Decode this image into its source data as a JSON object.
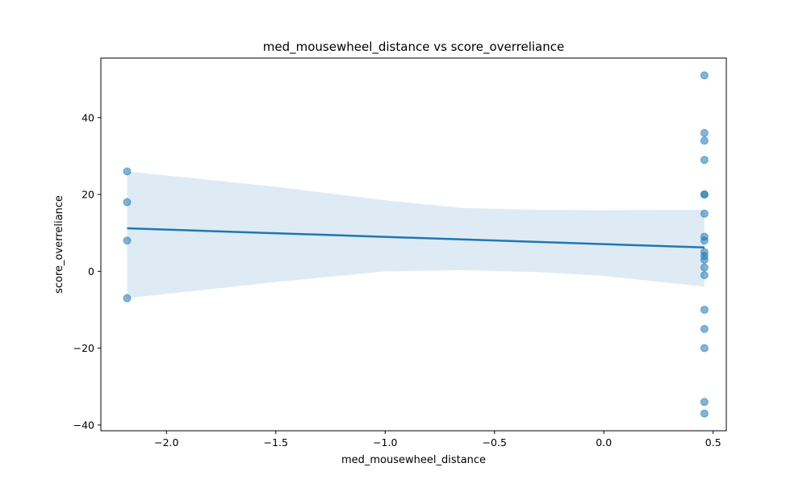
{
  "chart_data": {
    "type": "scatter",
    "title": "med_mousewheel_distance vs score_overreliance",
    "xlabel": "med_mousewheel_distance",
    "ylabel": "score_overreliance",
    "xlim": [
      -2.3,
      0.56
    ],
    "ylim": [
      -41.5,
      55.5
    ],
    "xticks": [
      -2.0,
      -1.5,
      -1.0,
      -0.5,
      0.0,
      0.5
    ],
    "xtick_labels": [
      "−2.0",
      "−1.5",
      "−1.0",
      "−0.5",
      "0.0",
      "0.5"
    ],
    "yticks": [
      -40,
      -20,
      0,
      20,
      40
    ],
    "ytick_labels": [
      "−40",
      "−20",
      "0",
      "20",
      "40"
    ],
    "grid": false,
    "legend": "none",
    "colors": {
      "points": "#1f77b4",
      "line": "#1f77b4",
      "band": "#1f77b4"
    },
    "points": [
      {
        "x": -2.18,
        "y": 26
      },
      {
        "x": -2.18,
        "y": 18
      },
      {
        "x": -2.18,
        "y": 8
      },
      {
        "x": -2.18,
        "y": -7
      },
      {
        "x": 0.46,
        "y": 51
      },
      {
        "x": 0.46,
        "y": 36
      },
      {
        "x": 0.46,
        "y": 34
      },
      {
        "x": 0.46,
        "y": 29
      },
      {
        "x": 0.46,
        "y": 20
      },
      {
        "x": 0.46,
        "y": 20
      },
      {
        "x": 0.46,
        "y": 15
      },
      {
        "x": 0.46,
        "y": 9
      },
      {
        "x": 0.46,
        "y": 8
      },
      {
        "x": 0.46,
        "y": 5
      },
      {
        "x": 0.46,
        "y": 4
      },
      {
        "x": 0.46,
        "y": 3
      },
      {
        "x": 0.46,
        "y": 1
      },
      {
        "x": 0.46,
        "y": -1
      },
      {
        "x": 0.46,
        "y": -10
      },
      {
        "x": 0.46,
        "y": -15
      },
      {
        "x": 0.46,
        "y": -20
      },
      {
        "x": 0.46,
        "y": -34
      },
      {
        "x": 0.46,
        "y": -37
      }
    ],
    "regression_line": [
      {
        "x": -2.18,
        "y": 11.2
      },
      {
        "x": 0.46,
        "y": 6.2
      }
    ],
    "confidence_band": {
      "x": [
        -2.18,
        -1.5,
        -1.0,
        -0.65,
        -0.3,
        0.0,
        0.46
      ],
      "upper": [
        26.0,
        22.0,
        18.5,
        16.5,
        16.0,
        15.9,
        16.0
      ],
      "lower": [
        -7.0,
        -2.8,
        0.0,
        0.3,
        -0.2,
        -1.2,
        -4.0
      ]
    }
  }
}
